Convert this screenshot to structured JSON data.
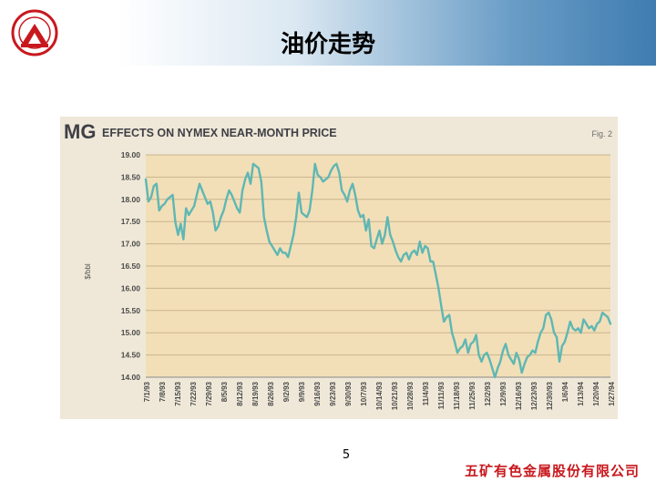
{
  "slide": {
    "title": "油价走势",
    "page_number": "5",
    "company": "五矿有色金属股份有限公司"
  },
  "colors": {
    "line": "#5fb7b3",
    "plot_bg": "#f2dfb8",
    "frame_bg": "#efe8d8",
    "title_text": "#3f3f46",
    "company_red": "#c8181e"
  },
  "chart_data": {
    "type": "line",
    "title_prefix": "MG",
    "title": "EFFECTS ON NYMEX NEAR-MONTH PRICE",
    "figure_label": "Fig. 2",
    "ylabel": "$/bbl",
    "ylim": [
      14.0,
      19.0
    ],
    "grid": true,
    "y_ticks": [
      "14.00",
      "14.50",
      "15.00",
      "15.50",
      "16.00",
      "16.50",
      "17.00",
      "17.50",
      "18.00",
      "18.50",
      "19.00"
    ],
    "x_tick_labels": [
      "7/1/93",
      "7/8/93",
      "7/15/93",
      "7/22/93",
      "7/29/93",
      "8/5/93",
      "8/12/93",
      "8/19/93",
      "8/26/93",
      "9/2/93",
      "9/9/93",
      "9/16/93",
      "9/23/93",
      "9/30/93",
      "10/7/93",
      "10/14/93",
      "10/21/93",
      "10/28/93",
      "11/4/93",
      "11/11/93",
      "11/18/93",
      "11/25/93",
      "12/2/93",
      "12/9/93",
      "12/16/93",
      "12/23/93",
      "12/30/93",
      "1/6/94",
      "1/13/94",
      "1/20/94",
      "1/27/94"
    ],
    "series": [
      {
        "name": "NYMEX near-month price",
        "values": [
          18.45,
          17.95,
          18.05,
          18.3,
          18.35,
          17.75,
          17.85,
          17.9,
          18.0,
          18.05,
          18.1,
          17.5,
          17.2,
          17.45,
          17.1,
          17.8,
          17.65,
          17.75,
          17.85,
          18.1,
          18.35,
          18.2,
          18.05,
          17.9,
          17.95,
          17.7,
          17.3,
          17.4,
          17.6,
          17.75,
          18.0,
          18.2,
          18.1,
          17.95,
          17.8,
          17.7,
          18.2,
          18.45,
          18.6,
          18.35,
          18.8,
          18.75,
          18.7,
          18.4,
          17.6,
          17.3,
          17.05,
          16.95,
          16.85,
          16.75,
          16.9,
          16.8,
          16.8,
          16.7,
          16.95,
          17.2,
          17.6,
          18.15,
          17.7,
          17.65,
          17.6,
          17.75,
          18.2,
          18.8,
          18.55,
          18.5,
          18.4,
          18.45,
          18.5,
          18.65,
          18.75,
          18.8,
          18.6,
          18.2,
          18.1,
          17.95,
          18.2,
          18.35,
          18.1,
          17.75,
          17.6,
          17.65,
          17.3,
          17.55,
          16.95,
          16.9,
          17.1,
          17.3,
          17.0,
          17.2,
          17.6,
          17.2,
          17.05,
          16.85,
          16.7,
          16.6,
          16.75,
          16.8,
          16.65,
          16.8,
          16.85,
          16.75,
          17.05,
          16.8,
          16.95,
          16.9,
          16.6,
          16.6,
          16.3,
          16.0,
          15.6,
          15.25,
          15.35,
          15.4,
          15.0,
          14.8,
          14.55,
          14.65,
          14.7,
          14.85,
          14.55,
          14.75,
          14.8,
          14.95,
          14.5,
          14.35,
          14.5,
          14.55,
          14.4,
          14.2,
          14.0,
          14.2,
          14.35,
          14.6,
          14.75,
          14.5,
          14.4,
          14.3,
          14.55,
          14.4,
          14.1,
          14.3,
          14.45,
          14.5,
          14.6,
          14.55,
          14.8,
          15.0,
          15.1,
          15.4,
          15.45,
          15.3,
          15.0,
          14.9,
          14.35,
          14.7,
          14.8,
          15.0,
          15.25,
          15.1,
          15.05,
          15.1,
          15.0,
          15.3,
          15.2,
          15.1,
          15.15,
          15.05,
          15.2,
          15.25,
          15.45,
          15.4,
          15.35,
          15.2
        ]
      }
    ]
  }
}
